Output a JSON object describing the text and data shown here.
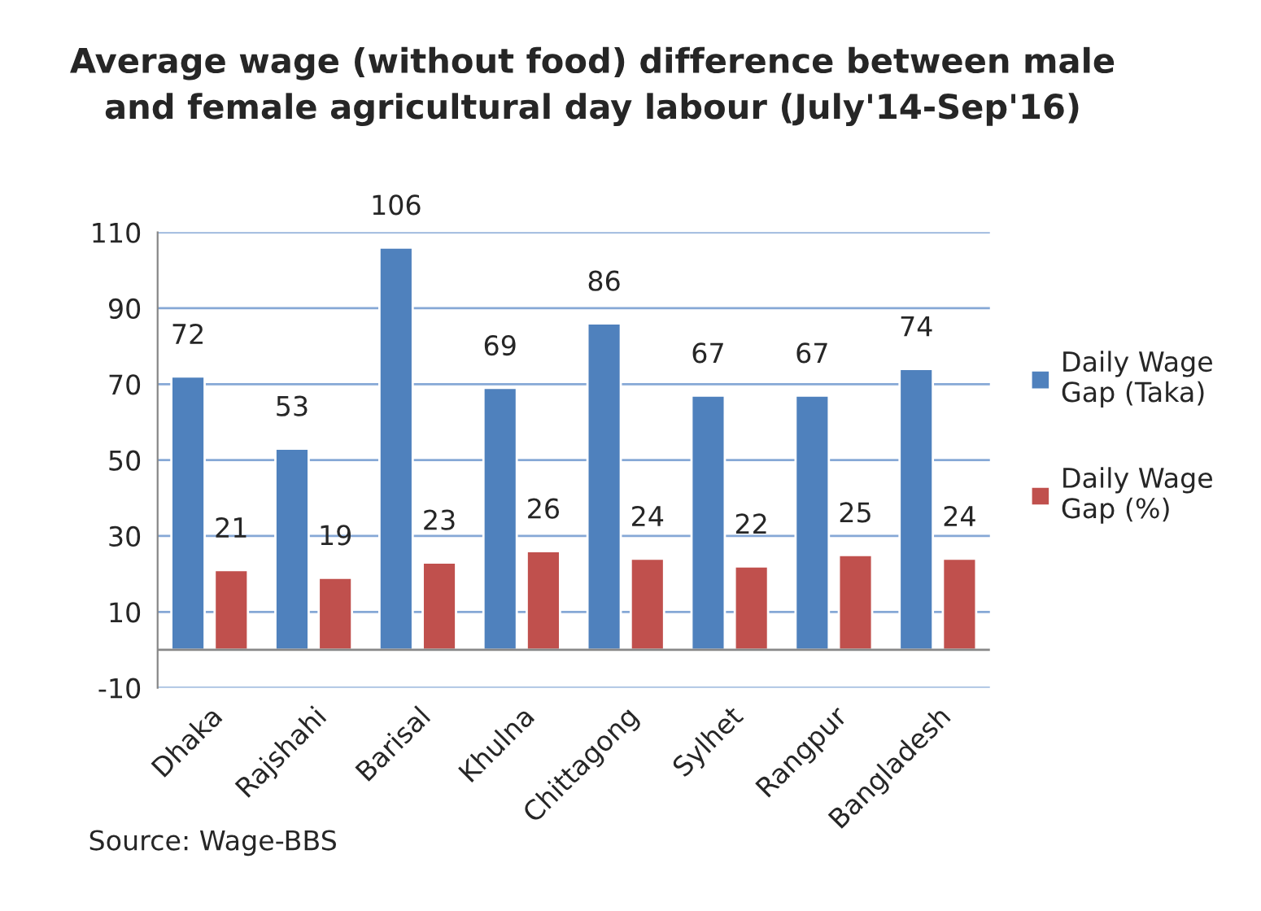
{
  "chart_data": {
    "type": "bar",
    "title": "Average wage (without food) difference between male\nand female agricultural day labour (July'14-Sep'16)",
    "categories": [
      "Dhaka",
      "Rajshahi",
      "Barisal",
      "Khulna",
      "Chittagong",
      "Sylhet",
      "Rangpur",
      "Bangladesh"
    ],
    "series": [
      {
        "name": "Daily Wage\nGap (Taka)",
        "color": "#4f81bd",
        "values": [
          72,
          53,
          106,
          69,
          86,
          67,
          67,
          74
        ]
      },
      {
        "name": "Daily Wage\nGap (%)",
        "color": "#c0504d",
        "values": [
          21,
          19,
          23,
          26,
          24,
          22,
          25,
          24
        ]
      }
    ],
    "ylim": [
      -10,
      110
    ],
    "yticks": [
      -10,
      10,
      30,
      50,
      70,
      90,
      110
    ],
    "grid": "y",
    "legend": "right",
    "data_labels": true,
    "annotations": [
      "Source: Wage-BBS"
    ]
  }
}
